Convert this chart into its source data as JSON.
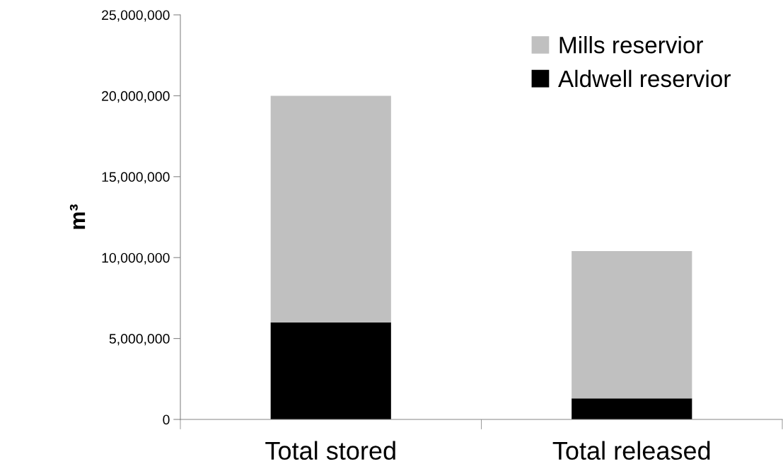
{
  "chart_data": {
    "type": "bar",
    "stacked": true,
    "ylabel": "m³",
    "categories": [
      "Total stored",
      "Total released"
    ],
    "series": [
      {
        "name": "Aldwell reservior",
        "color": "#000000",
        "values": [
          6000000,
          1300000
        ]
      },
      {
        "name": "Mills reservior",
        "color": "#c0c0c0",
        "values": [
          14000000,
          9100000
        ]
      }
    ],
    "ylim": [
      0,
      25000000
    ],
    "yticks": [
      {
        "value": 0,
        "label": "0"
      },
      {
        "value": 5000000,
        "label": "5,000,000"
      },
      {
        "value": 10000000,
        "label": "10,000,000"
      },
      {
        "value": 15000000,
        "label": "15,000,000"
      },
      {
        "value": 20000000,
        "label": "20,000,000"
      },
      {
        "value": 25000000,
        "label": "25,000,000"
      }
    ],
    "grid": false,
    "legend": "top right"
  }
}
